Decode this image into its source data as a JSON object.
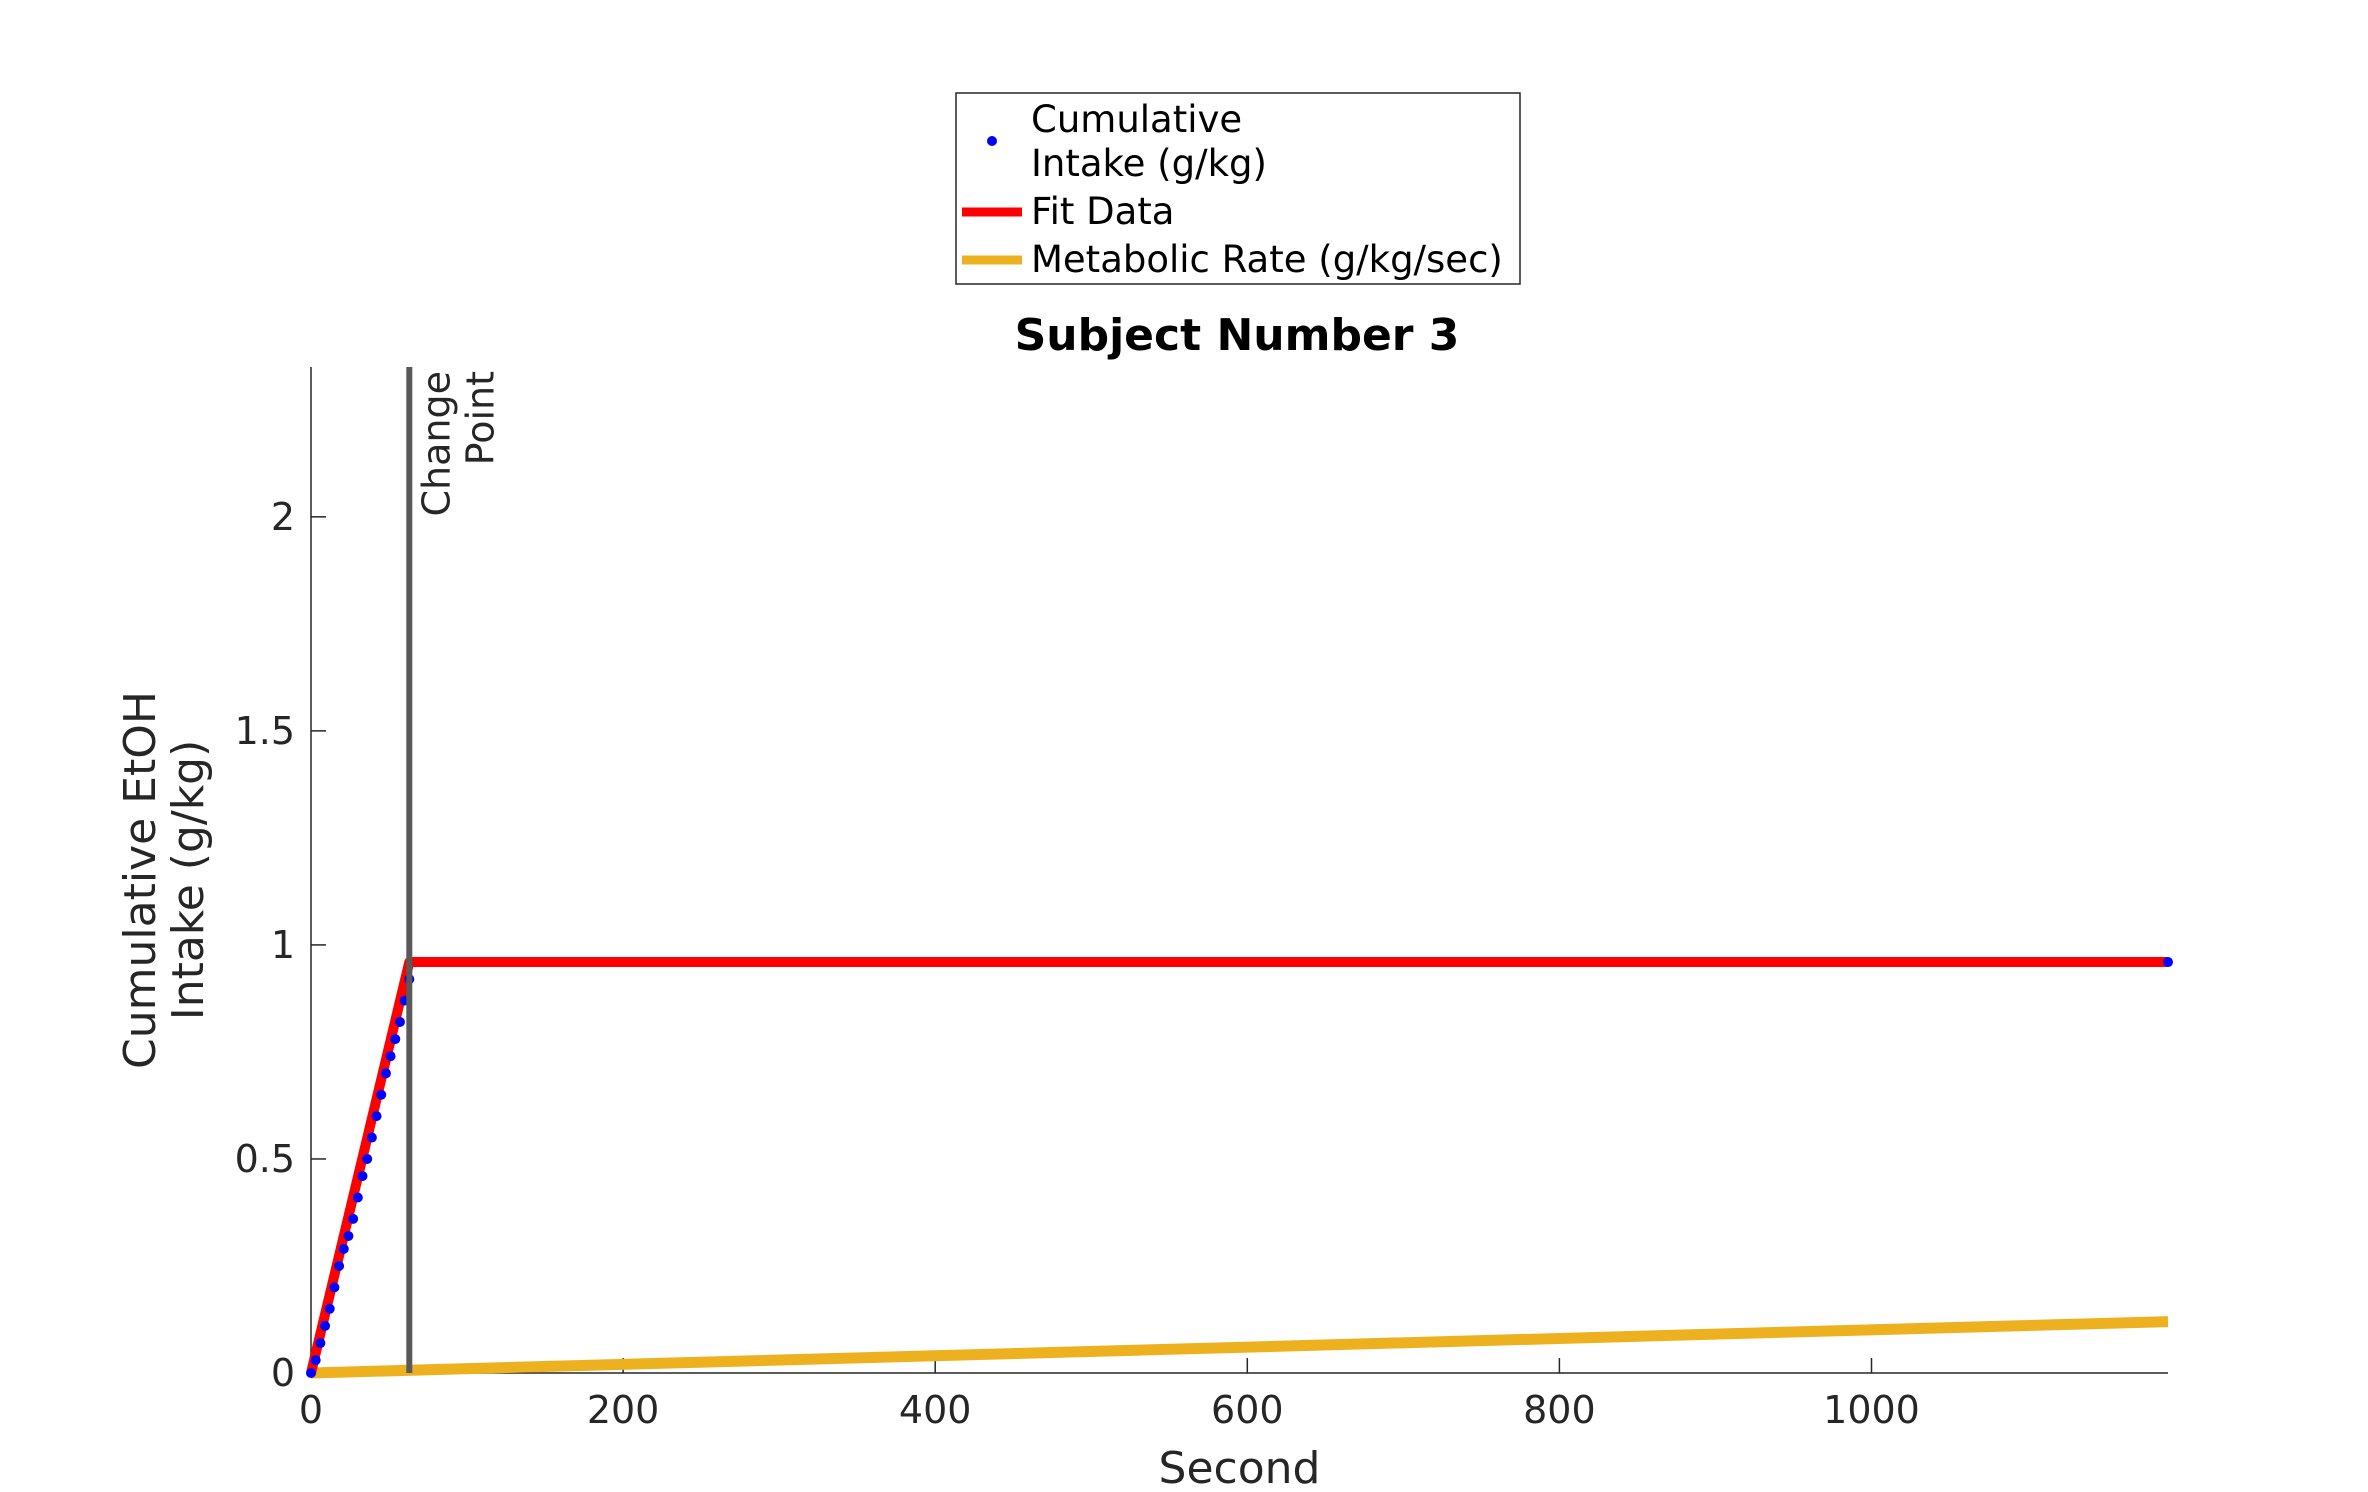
{
  "chart_data": {
    "type": "line",
    "title": "Subject Number 3",
    "xlabel": "Second",
    "ylabel_lines": [
      "Cumulative EtOH",
      "Intake (g/kg)"
    ],
    "xlim": [
      0,
      1190
    ],
    "ylim": [
      0,
      2.35
    ],
    "x_ticks": [
      0,
      200,
      400,
      600,
      800,
      1000
    ],
    "x_tick_labels": [
      "0",
      "200",
      "400",
      "600",
      "800",
      "1000"
    ],
    "y_ticks": [
      0,
      0.5,
      1,
      1.5,
      2
    ],
    "y_tick_labels": [
      "0",
      "0.5",
      "1",
      "1.5",
      "2"
    ],
    "grid": false,
    "legend_position": "top-center",
    "series": [
      {
        "name": "Cumulative Intake (g/kg)",
        "name_lines": [
          "Cumulative",
          "Intake (g/kg)"
        ],
        "style": "markers",
        "color": "#0000ff",
        "x": [
          0,
          3,
          6,
          9,
          12,
          15,
          18,
          21,
          24,
          27,
          30,
          33,
          36,
          39,
          42,
          45,
          48,
          51,
          54,
          57,
          60,
          63,
          1190
        ],
        "y": [
          0.0,
          0.03,
          0.07,
          0.11,
          0.15,
          0.2,
          0.25,
          0.29,
          0.32,
          0.36,
          0.41,
          0.46,
          0.5,
          0.55,
          0.6,
          0.65,
          0.7,
          0.74,
          0.78,
          0.82,
          0.87,
          0.92,
          0.96
        ]
      },
      {
        "name": "Fit Data",
        "style": "line",
        "color": "#ff0000",
        "x": [
          0,
          63,
          1190
        ],
        "y": [
          0.0,
          0.96,
          0.96
        ]
      },
      {
        "name": "Metabolic Rate (g/kg/sec)",
        "style": "line",
        "color": "#edb120",
        "x": [
          0,
          1190
        ],
        "y": [
          0.0,
          0.12
        ]
      }
    ],
    "annotations": [
      {
        "type": "vertical-line",
        "x": 63,
        "color": "#595959",
        "label_lines": [
          "Change",
          "Point"
        ]
      }
    ]
  }
}
